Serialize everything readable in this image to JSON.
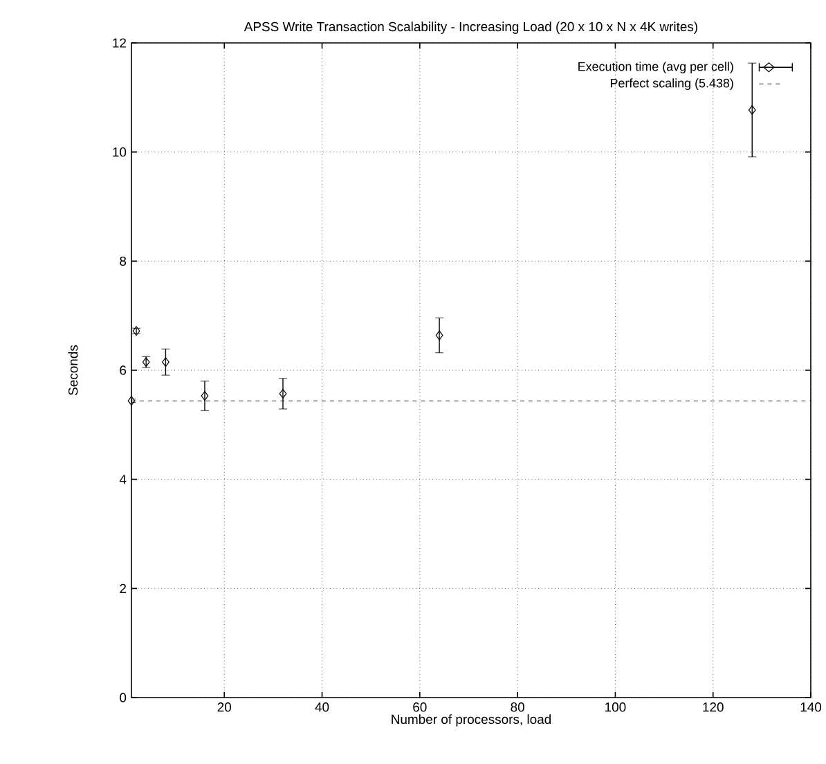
{
  "chart_data": {
    "type": "scatter",
    "title": "APSS Write Transaction Scalability - Increasing Load (20 x 10 x N x 4K writes)",
    "xlabel": "Number of processors, load",
    "ylabel": "Seconds",
    "x": [
      1,
      2,
      4,
      8,
      16,
      32,
      64,
      128
    ],
    "series": [
      {
        "name": "Execution time (avg per cell)",
        "color": "#000000",
        "values": [
          5.44,
          6.72,
          6.15,
          6.15,
          5.53,
          5.57,
          6.64,
          10.77
        ],
        "errors": [
          0.03,
          0.05,
          0.1,
          0.24,
          0.27,
          0.28,
          0.32,
          0.86
        ]
      }
    ],
    "ref_lines": [
      {
        "axis": "y",
        "value": 5.438,
        "label": "Perfect scaling (5.438)",
        "line_style": "dashed",
        "color": "#000000"
      }
    ],
    "xlim": [
      1,
      140
    ],
    "ylim": [
      0,
      12
    ],
    "xticks": [
      20,
      40,
      60,
      80,
      100,
      120,
      140
    ],
    "yticks": [
      0,
      2,
      4,
      6,
      8,
      10,
      12
    ],
    "grid": true,
    "legend": "top right",
    "marker": "diamond"
  }
}
